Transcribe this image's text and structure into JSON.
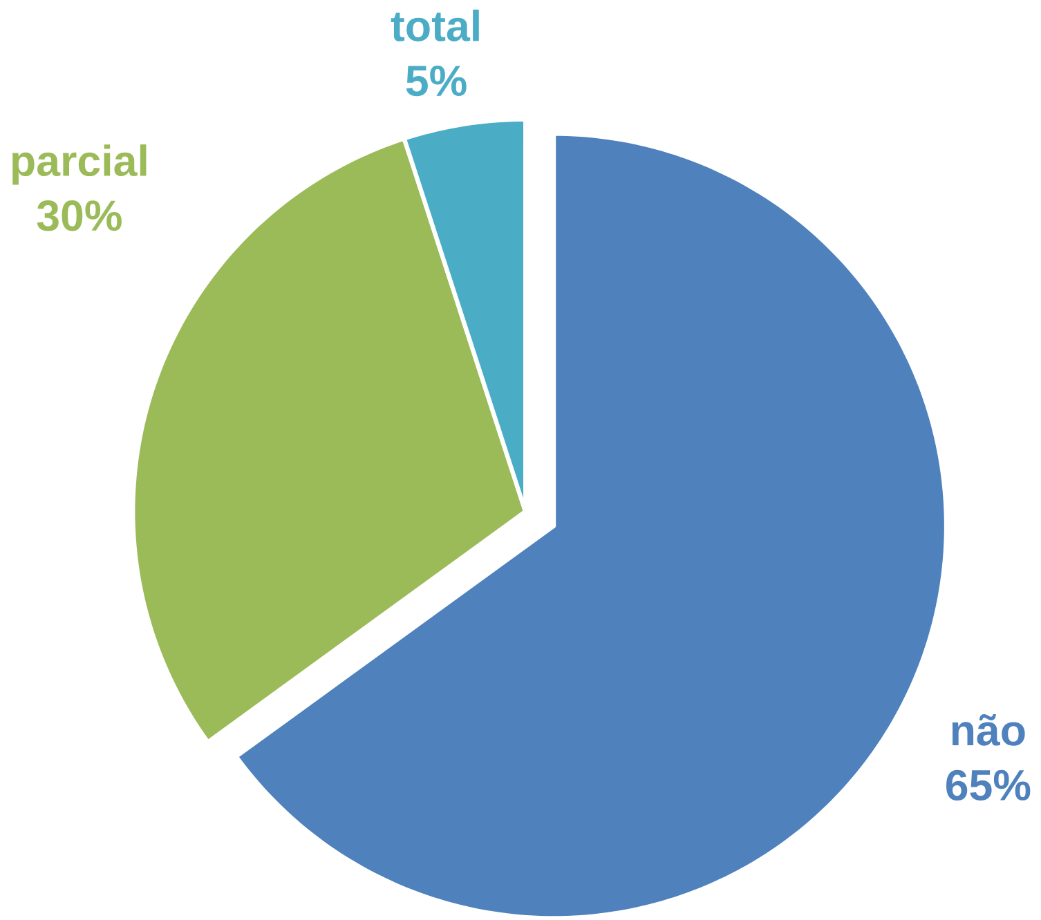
{
  "chart_data": {
    "type": "pie",
    "categories": [
      "não",
      "parcial",
      "total"
    ],
    "values": [
      65,
      30,
      5
    ],
    "value_labels": [
      "65%",
      "30%",
      "5%"
    ],
    "colors": [
      "#4f81bd",
      "#9bbb59",
      "#4bacc6"
    ]
  }
}
